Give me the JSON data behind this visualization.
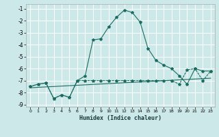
{
  "xlabel": "Humidex (Indice chaleur)",
  "bg_color": "#cce8e8",
  "grid_color": "#ffffff",
  "line_color": "#1a6b60",
  "xlim": [
    -0.5,
    23.5
  ],
  "ylim": [
    -9.2,
    -0.6
  ],
  "xticks": [
    0,
    1,
    2,
    3,
    4,
    5,
    6,
    7,
    8,
    9,
    10,
    11,
    12,
    13,
    14,
    15,
    16,
    17,
    18,
    19,
    20,
    21,
    22,
    23
  ],
  "yticks": [
    -1,
    -2,
    -3,
    -4,
    -5,
    -6,
    -7,
    -8,
    -9
  ],
  "line1_x": [
    0,
    1,
    2,
    3,
    4,
    5,
    6,
    7,
    8,
    9,
    10,
    11,
    12,
    13,
    14,
    15,
    16,
    17,
    18,
    19,
    20,
    21,
    22,
    23
  ],
  "line1_y": [
    -7.5,
    -7.3,
    -7.2,
    -8.5,
    -8.2,
    -8.4,
    -7.0,
    -6.6,
    -3.6,
    -3.5,
    -2.5,
    -1.7,
    -1.1,
    -1.3,
    -2.1,
    -4.3,
    -5.3,
    -5.7,
    -6.0,
    -6.6,
    -7.3,
    -6.0,
    -6.2,
    -6.2
  ],
  "line2_x": [
    0,
    1,
    2,
    3,
    4,
    5,
    6,
    7,
    8,
    9,
    10,
    11,
    12,
    13,
    14,
    15,
    16,
    17,
    18,
    19,
    20,
    21,
    22,
    23
  ],
  "line2_y": [
    -7.5,
    -7.3,
    -7.2,
    -8.5,
    -8.2,
    -8.4,
    -7.0,
    -7.0,
    -7.0,
    -7.0,
    -7.0,
    -7.0,
    -7.0,
    -7.0,
    -7.0,
    -7.0,
    -7.0,
    -7.0,
    -7.0,
    -7.3,
    -6.1,
    -6.0,
    -7.0,
    -6.2
  ],
  "line3_x": [
    0,
    23
  ],
  "line3_y": [
    -7.6,
    -6.8
  ]
}
